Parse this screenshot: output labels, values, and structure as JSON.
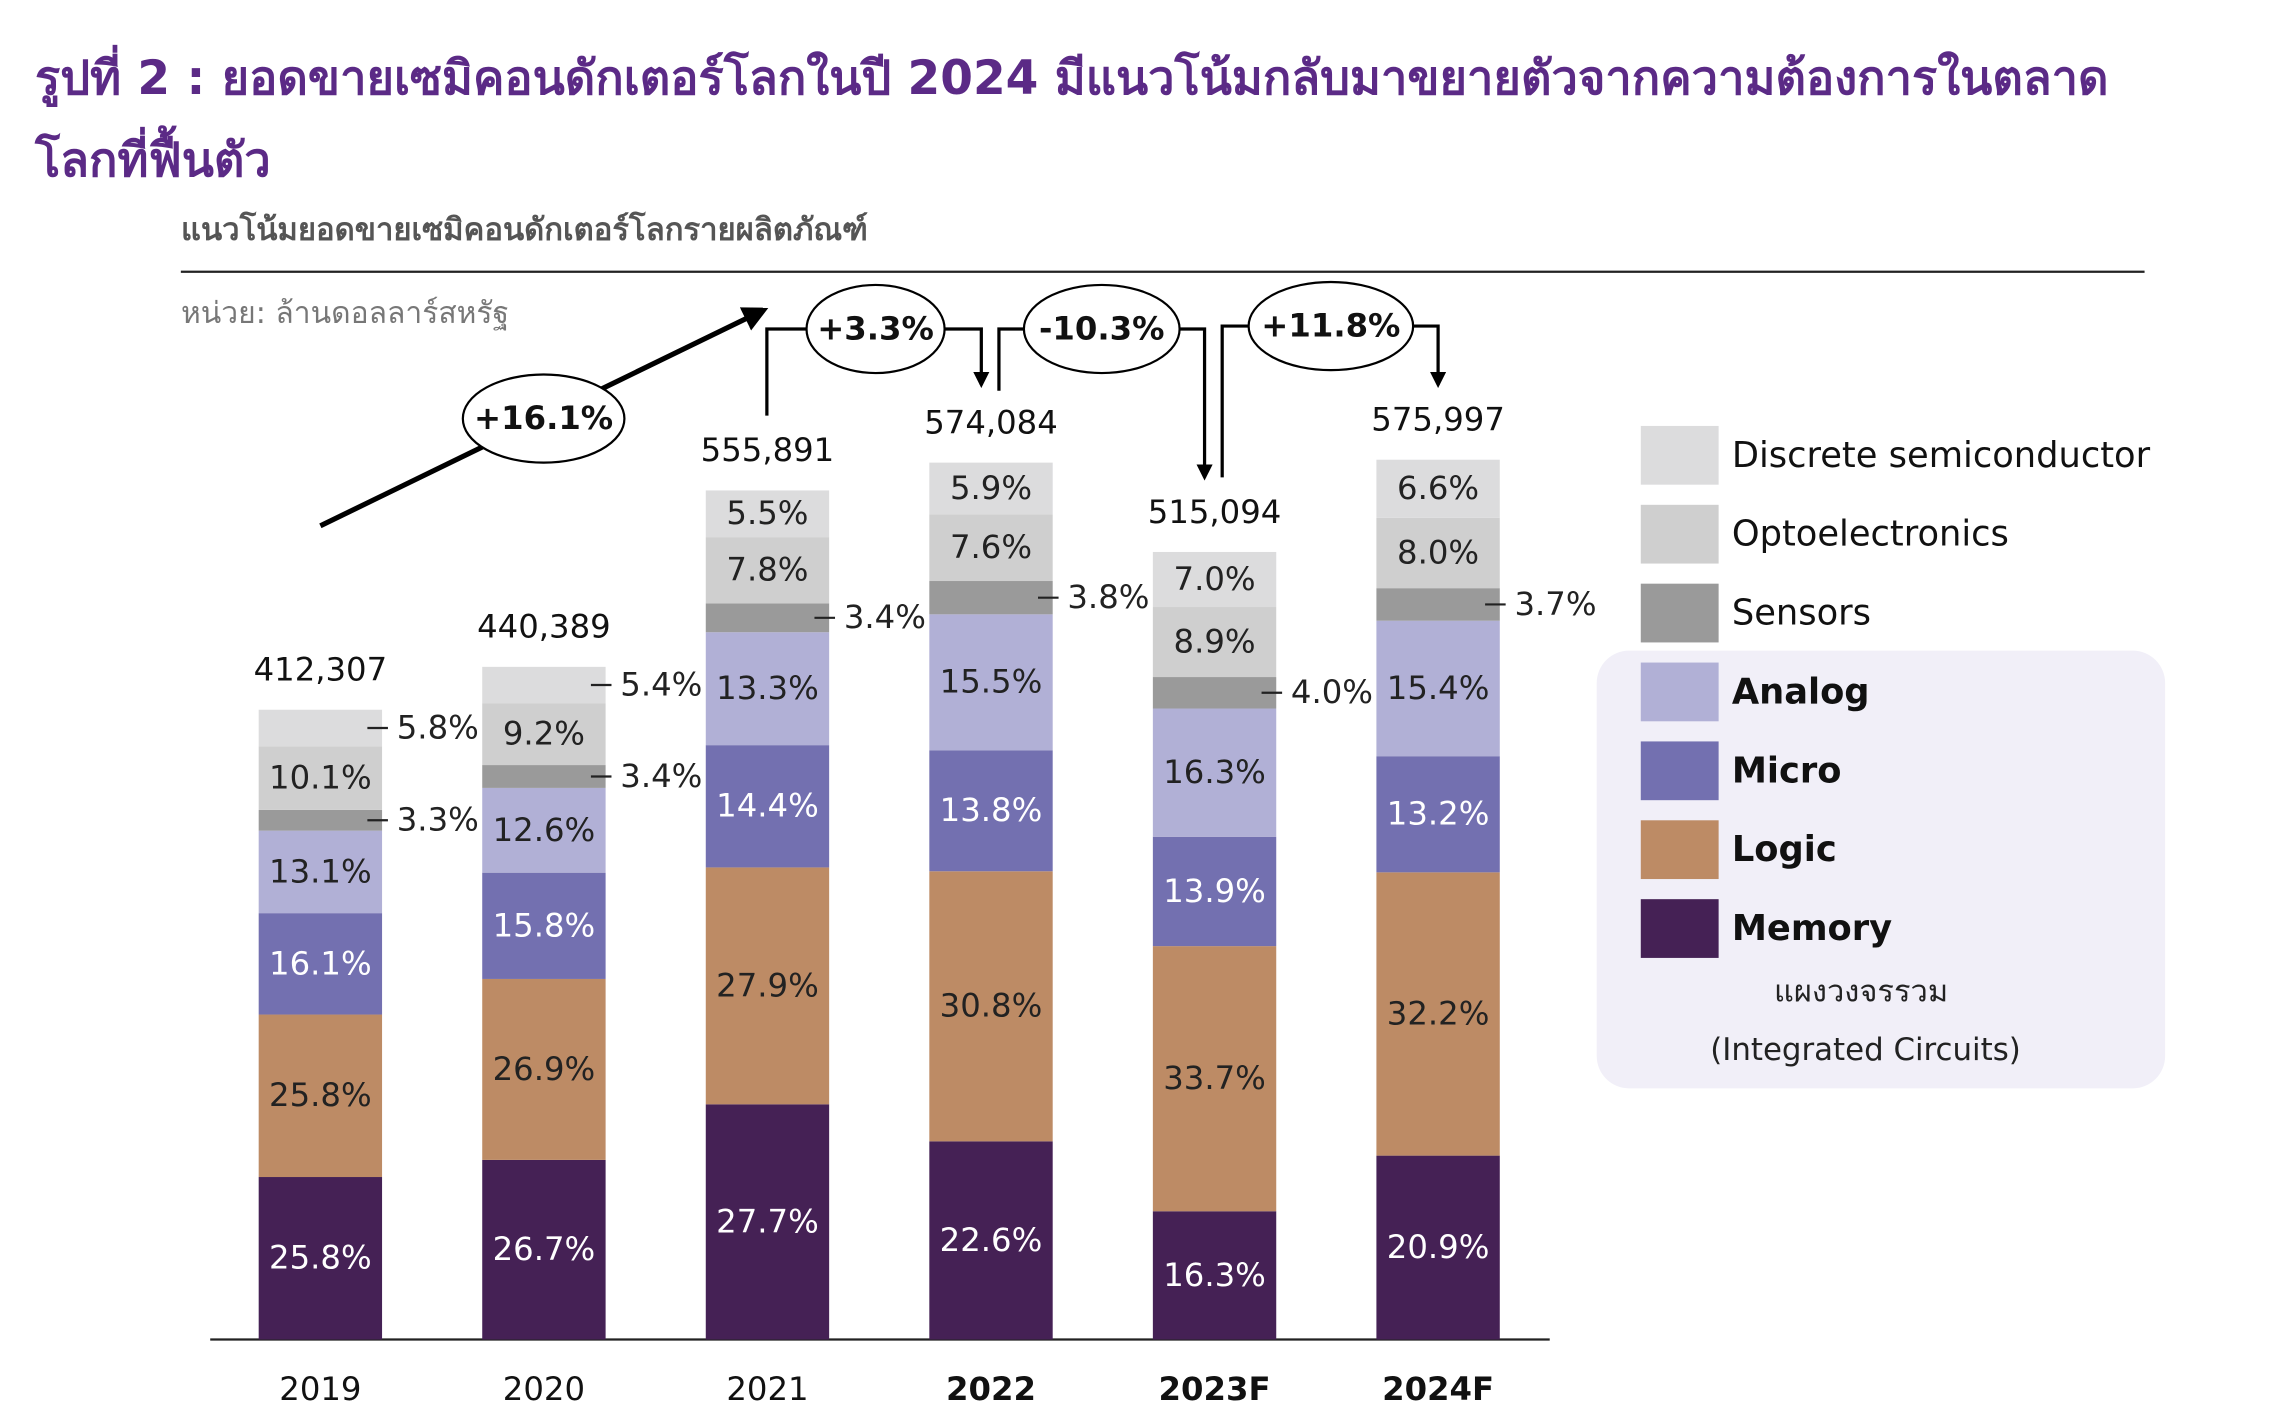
{
  "chart_data": {
    "type": "bar",
    "title": "รูปที่ 2 : ยอดขายเซมิคอนดักเตอร์โลกในปี 2024 มีแนวโน้มกลับมาขยายตัวจากความต้องการในตลาดโลกที่ฟื้นตัว",
    "subtitle": "แนวโน้มยอดขายเซมิคอนดักเตอร์โลกรายผลิตภัณฑ์",
    "unit": "หน่วย: ล้านดอลลาร์สหรัฐ",
    "categories": [
      "2019",
      "2020",
      "2021",
      "2022",
      "2023F",
      "2024F"
    ],
    "totals": [
      412307,
      440389,
      555891,
      574084,
      515094,
      575997
    ],
    "total_labels": [
      "412,307",
      "440,389",
      "555,891",
      "574,084",
      "515,094",
      "575,997"
    ],
    "series": [
      {
        "name": "Memory",
        "color": "#452155",
        "values": [
          25.8,
          26.7,
          27.7,
          22.6,
          16.3,
          20.9
        ],
        "value_labels": [
          "25.8%",
          "26.7%",
          "27.7%",
          "22.6%",
          "16.3%",
          "20.9%"
        ]
      },
      {
        "name": "Logic",
        "color": "#bd8b65",
        "values": [
          25.8,
          26.9,
          27.9,
          30.8,
          33.7,
          32.2
        ],
        "value_labels": [
          "25.8%",
          "26.9%",
          "27.9%",
          "30.8%",
          "33.7%",
          "32.2%"
        ]
      },
      {
        "name": "Micro",
        "color": "#7370b0",
        "values": [
          16.1,
          15.8,
          14.4,
          13.8,
          13.9,
          13.2
        ],
        "value_labels": [
          "16.1%",
          "15.8%",
          "14.4%",
          "13.8%",
          "13.9%",
          "13.2%"
        ]
      },
      {
        "name": "Analog",
        "color": "#b1b0d6",
        "values": [
          13.1,
          12.6,
          13.3,
          15.5,
          16.3,
          15.4
        ],
        "value_labels": [
          "13.1%",
          "12.6%",
          "13.3%",
          "15.5%",
          "16.3%",
          "15.4%"
        ]
      },
      {
        "name": "Sensors",
        "color": "#9a9a9a",
        "values": [
          3.3,
          3.4,
          3.4,
          3.8,
          4.0,
          3.7
        ],
        "value_labels": [
          "3.3%",
          "3.4%",
          "3.4%",
          "3.8%",
          "4.0%",
          "3.7%"
        ]
      },
      {
        "name": "Optoelectronics",
        "color": "#cfcfcf",
        "values": [
          10.1,
          9.2,
          7.8,
          7.6,
          8.9,
          8.0
        ],
        "value_labels": [
          "10.1%",
          "9.2%",
          "7.8%",
          "7.6%",
          "8.9%",
          "8.0%"
        ]
      },
      {
        "name": "Discrete semiconductor",
        "color": "#dcdcdd",
        "values": [
          5.8,
          5.4,
          5.5,
          5.9,
          7.0,
          6.6
        ],
        "value_labels": [
          "5.8%",
          "5.4%",
          "5.5%",
          "5.9%",
          "7.0%",
          "6.6%"
        ]
      }
    ],
    "legend_group": [
      "แผงวงจรรวม",
      "(Integrated Circuits)"
    ],
    "annotations": [
      "+16.1%",
      "+3.3%",
      "-10.3%",
      "+11.8%"
    ]
  }
}
